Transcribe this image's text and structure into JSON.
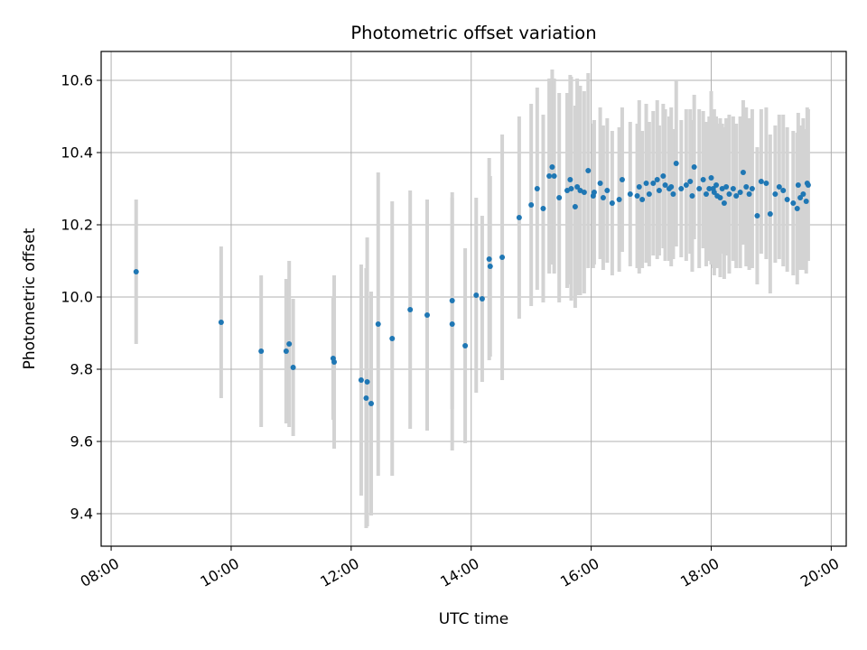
{
  "chart_data": {
    "type": "scatter",
    "title": "Photometric offset variation",
    "xlabel": "UTC time",
    "ylabel": "Photometric offset",
    "x_unit": "UTC hour",
    "xlim": [
      "07:50",
      "20:15"
    ],
    "ylim": [
      9.31,
      10.68
    ],
    "grid": true,
    "x_ticks": [
      "08:00",
      "10:00",
      "12:00",
      "14:00",
      "16:00",
      "18:00",
      "20:00"
    ],
    "y_ticks": [
      "9.4",
      "9.6",
      "9.8",
      "10.0",
      "10.2",
      "10.4",
      "10.6"
    ],
    "colors": {
      "points": "#1f77b4",
      "error_bars": "#d3d3d3",
      "grid": "#b0b0b0"
    },
    "x": [
      "08:25",
      "09:50",
      "10:30",
      "10:55",
      "10:58",
      "11:02",
      "11:42",
      "11:43",
      "12:10",
      "12:15",
      "12:16",
      "12:20",
      "12:27",
      "12:41",
      "12:59",
      "13:16",
      "13:41",
      "13:41",
      "13:54",
      "14:05",
      "14:11",
      "14:18",
      "14:19",
      "14:31",
      "14:48",
      "15:00",
      "15:06",
      "15:12",
      "15:18",
      "15:21",
      "15:23",
      "15:28",
      "15:36",
      "15:39",
      "15:40",
      "15:44",
      "15:46",
      "15:49",
      "15:53",
      "15:57",
      "16:02",
      "16:03",
      "16:09",
      "16:12",
      "16:16",
      "16:21",
      "16:28",
      "16:31",
      "16:39",
      "16:46",
      "16:48",
      "16:51",
      "16:55",
      "16:58",
      "17:02",
      "17:06",
      "17:08",
      "17:12",
      "17:14",
      "17:18",
      "17:20",
      "17:22",
      "17:25",
      "17:30",
      "17:35",
      "17:39",
      "17:41",
      "17:43",
      "17:48",
      "17:52",
      "17:55",
      "17:58",
      "18:00",
      "18:02",
      "18:03",
      "18:05",
      "18:06",
      "18:09",
      "18:11",
      "18:13",
      "18:15",
      "18:18",
      "18:22",
      "18:25",
      "18:29",
      "18:32",
      "18:35",
      "18:38",
      "18:41",
      "18:46",
      "18:50",
      "18:55",
      "18:59",
      "19:04",
      "19:08",
      "19:12",
      "19:16",
      "19:22",
      "19:26",
      "19:27",
      "19:29",
      "19:32",
      "19:35",
      "19:36",
      "19:37"
    ],
    "y": [
      10.07,
      9.93,
      9.85,
      9.85,
      9.87,
      9.805,
      9.83,
      9.82,
      9.77,
      9.72,
      9.765,
      9.705,
      9.925,
      9.885,
      9.965,
      9.95,
      9.99,
      9.925,
      9.865,
      10.005,
      9.995,
      10.105,
      10.085,
      10.11,
      10.22,
      10.255,
      10.3,
      10.245,
      10.335,
      10.36,
      10.335,
      10.275,
      10.295,
      10.325,
      10.3,
      10.25,
      10.305,
      10.295,
      10.29,
      10.35,
      10.28,
      10.29,
      10.315,
      10.275,
      10.295,
      10.26,
      10.27,
      10.325,
      10.285,
      10.28,
      10.305,
      10.27,
      10.315,
      10.285,
      10.315,
      10.325,
      10.295,
      10.335,
      10.31,
      10.3,
      10.305,
      10.285,
      10.37,
      10.3,
      10.31,
      10.32,
      10.28,
      10.36,
      10.3,
      10.325,
      10.285,
      10.3,
      10.33,
      10.3,
      10.29,
      10.31,
      10.28,
      10.275,
      10.3,
      10.26,
      10.305,
      10.285,
      10.3,
      10.28,
      10.29,
      10.345,
      10.305,
      10.285,
      10.3,
      10.225,
      10.32,
      10.315,
      10.23,
      10.285,
      10.305,
      10.295,
      10.27,
      10.26,
      10.245,
      10.31,
      10.275,
      10.285,
      10.265,
      10.315,
      10.31
    ],
    "yerr": [
      0.2,
      0.21,
      0.21,
      0.2,
      0.23,
      0.19,
      0.17,
      0.24,
      0.32,
      0.36,
      0.4,
      0.31,
      0.42,
      0.38,
      0.33,
      0.32,
      0.3,
      0.35,
      0.27,
      0.27,
      0.23,
      0.28,
      0.25,
      0.34,
      0.28,
      0.28,
      0.28,
      0.26,
      0.27,
      0.27,
      0.27,
      0.29,
      0.27,
      0.29,
      0.31,
      0.28,
      0.3,
      0.29,
      0.28,
      0.27,
      0.2,
      0.2,
      0.21,
      0.2,
      0.2,
      0.2,
      0.2,
      0.2,
      0.2,
      0.2,
      0.24,
      0.19,
      0.22,
      0.2,
      0.2,
      0.22,
      0.18,
      0.2,
      0.21,
      0.2,
      0.22,
      0.18,
      0.23,
      0.19,
      0.21,
      0.2,
      0.21,
      0.2,
      0.22,
      0.19,
      0.2,
      0.2,
      0.24,
      0.22,
      0.23,
      0.19,
      0.2,
      0.22,
      0.18,
      0.21,
      0.19,
      0.22,
      0.2,
      0.2,
      0.21,
      0.2,
      0.22,
      0.21,
      0.22,
      0.19,
      0.2,
      0.21,
      0.22,
      0.19,
      0.2,
      0.21,
      0.2,
      0.2,
      0.21,
      0.2,
      0.2,
      0.21,
      0.2,
      0.21,
      0.21
    ]
  }
}
